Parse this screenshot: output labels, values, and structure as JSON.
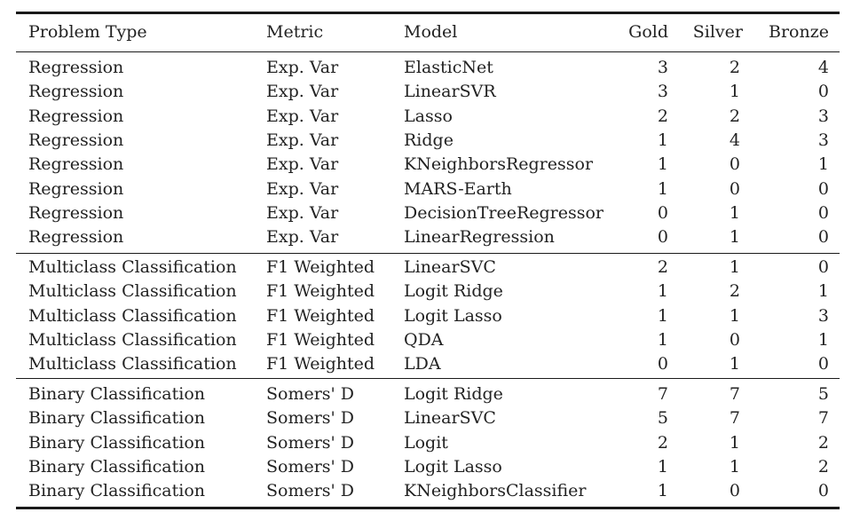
{
  "table": {
    "headers": [
      "Problem Type",
      "Metric",
      "Model",
      "Gold",
      "Silver",
      "Bronze"
    ],
    "groups": [
      {
        "rows": [
          [
            "Regression",
            "Exp. Var",
            "ElasticNet",
            "3",
            "2",
            "4"
          ],
          [
            "Regression",
            "Exp. Var",
            "LinearSVR",
            "3",
            "1",
            "0"
          ],
          [
            "Regression",
            "Exp. Var",
            "Lasso",
            "2",
            "2",
            "3"
          ],
          [
            "Regression",
            "Exp. Var",
            "Ridge",
            "1",
            "4",
            "3"
          ],
          [
            "Regression",
            "Exp. Var",
            "KNeighborsRegressor",
            "1",
            "0",
            "1"
          ],
          [
            "Regression",
            "Exp. Var",
            "MARS-Earth",
            "1",
            "0",
            "0"
          ],
          [
            "Regression",
            "Exp. Var",
            "DecisionTreeRegressor",
            "0",
            "1",
            "0"
          ],
          [
            "Regression",
            "Exp. Var",
            "LinearRegression",
            "0",
            "1",
            "0"
          ]
        ]
      },
      {
        "rows": [
          [
            "Multiclass Classification",
            "F1 Weighted",
            "LinearSVC",
            "2",
            "1",
            "0"
          ],
          [
            "Multiclass Classification",
            "F1 Weighted",
            "Logit Ridge",
            "1",
            "2",
            "1"
          ],
          [
            "Multiclass Classification",
            "F1 Weighted",
            "Logit Lasso",
            "1",
            "1",
            "3"
          ],
          [
            "Multiclass Classification",
            "F1 Weighted",
            "QDA",
            "1",
            "0",
            "1"
          ],
          [
            "Multiclass Classification",
            "F1 Weighted",
            "LDA",
            "0",
            "1",
            "0"
          ]
        ]
      },
      {
        "rows": [
          [
            "Binary Classification",
            "Somers' D",
            "Logit Ridge",
            "7",
            "7",
            "5"
          ],
          [
            "Binary Classification",
            "Somers' D",
            "LinearSVC",
            "5",
            "7",
            "7"
          ],
          [
            "Binary Classification",
            "Somers' D",
            "Logit",
            "2",
            "1",
            "2"
          ],
          [
            "Binary Classification",
            "Somers' D",
            "Logit Lasso",
            "1",
            "1",
            "2"
          ],
          [
            "Binary Classification",
            "Somers' D",
            "KNeighborsClassifier",
            "1",
            "0",
            "0"
          ]
        ]
      }
    ]
  }
}
